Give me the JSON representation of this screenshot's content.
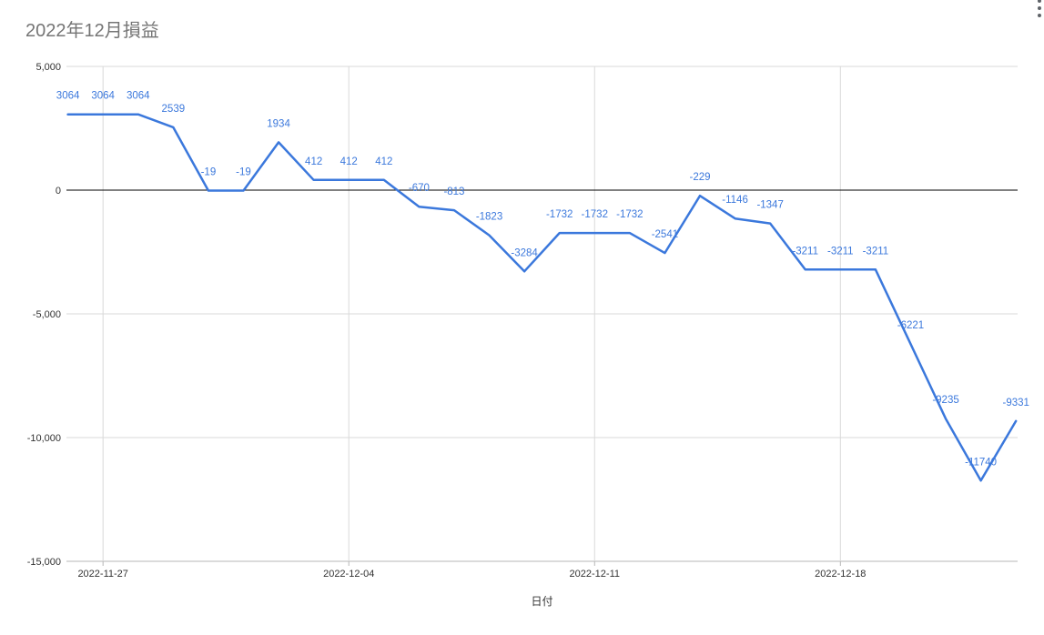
{
  "header": {
    "title": "2022年12月損益",
    "menu_icon": "kebab-menu-icon"
  },
  "chart_data": {
    "type": "line",
    "title": "2022年12月損益",
    "xlabel": "日付",
    "ylabel": "",
    "x": [
      "2022-11-26",
      "2022-11-27",
      "2022-11-28",
      "2022-11-29",
      "2022-11-30",
      "2022-12-01",
      "2022-12-02",
      "2022-12-03",
      "2022-12-04",
      "2022-12-05",
      "2022-12-06",
      "2022-12-07",
      "2022-12-08",
      "2022-12-09",
      "2022-12-10",
      "2022-12-11",
      "2022-12-12",
      "2022-12-13",
      "2022-12-14",
      "2022-12-15",
      "2022-12-16",
      "2022-12-17",
      "2022-12-18",
      "2022-12-19",
      "2022-12-20",
      "2022-12-21",
      "2022-12-22",
      "2022-12-23"
    ],
    "values": [
      3064,
      3064,
      3064,
      2539,
      -19,
      -19,
      1934,
      412,
      412,
      412,
      -670,
      -813,
      -1823,
      -3284,
      -1732,
      -1732,
      -1732,
      -2541,
      -229,
      -1146,
      -1347,
      -3211,
      -3211,
      -3211,
      -6221,
      -9235,
      -11740,
      -9331
    ],
    "data_labels": true,
    "ylim": [
      -15000,
      5000
    ],
    "y_ticks": [
      5000,
      0,
      -5000,
      -10000,
      -15000
    ],
    "y_tick_labels": [
      "5,000",
      "0",
      "-5,000",
      "-10,000",
      "-15,000"
    ],
    "x_tick_indices": [
      1,
      8,
      15,
      22
    ],
    "x_tick_labels": [
      "2022-11-27",
      "2022-12-04",
      "2022-12-11",
      "2022-12-18"
    ],
    "grid": true,
    "legend_position": "none",
    "colors": {
      "series": "#3b78dc",
      "data_label": "#3b78dc",
      "gridline": "#d9d9d9",
      "zero_line": "#000000",
      "axis_line": "#b7b7b7",
      "tick_label": "#333333",
      "title": "#757575"
    }
  }
}
